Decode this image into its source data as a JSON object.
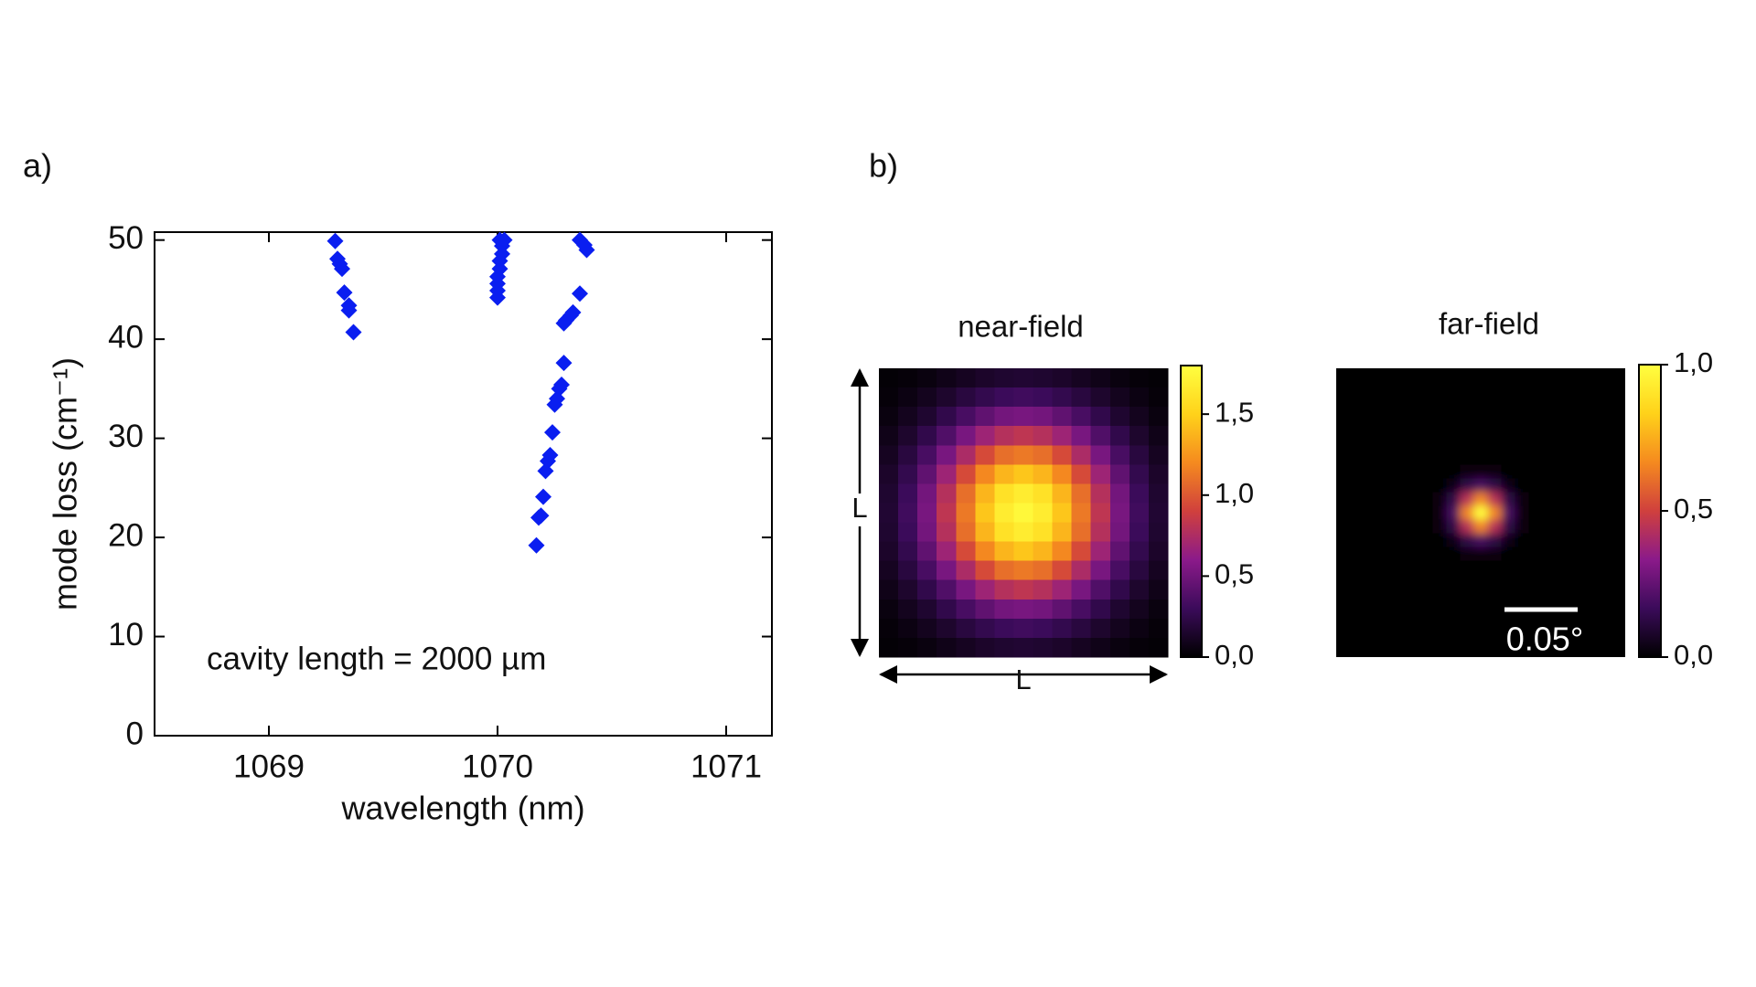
{
  "chart_data": [
    {
      "type": "scatter",
      "panel_label": "a)",
      "xlabel": "wavelength (nm)",
      "ylabel": "mode loss (cm⁻¹)",
      "annotation": "cavity length = 2000 µm",
      "color": "#0a1ef0",
      "xlim": [
        1068.5,
        1071.2
      ],
      "xticks": [
        1069,
        1070,
        1071
      ],
      "ylim": [
        0,
        50.8
      ],
      "yticks": [
        0,
        10,
        20,
        30,
        40,
        50
      ],
      "x": [
        1069.29,
        1069.3,
        1069.31,
        1069.32,
        1069.33,
        1069.35,
        1069.35,
        1069.37,
        1070.0,
        1070.0,
        1070.0,
        1070.0,
        1070.01,
        1070.01,
        1070.02,
        1070.02,
        1070.03,
        1070.01,
        1070.17,
        1070.18,
        1070.19,
        1070.2,
        1070.21,
        1070.22,
        1070.23,
        1070.24,
        1070.25,
        1070.26,
        1070.27,
        1070.28,
        1070.29,
        1070.29,
        1070.3,
        1070.32,
        1070.33,
        1070.36,
        1070.36,
        1070.38,
        1070.39
      ],
      "values": [
        49.9,
        48.1,
        47.6,
        47.1,
        44.7,
        43.4,
        42.9,
        40.7,
        44.2,
        44.9,
        45.6,
        46.3,
        47.1,
        47.9,
        48.6,
        49.4,
        50.0,
        50.0,
        19.2,
        22.0,
        22.2,
        24.1,
        26.7,
        27.7,
        28.3,
        30.6,
        33.4,
        34.0,
        35.0,
        35.4,
        37.6,
        41.6,
        41.9,
        42.4,
        42.7,
        44.6,
        50.0,
        49.5,
        49.0
      ]
    },
    {
      "type": "heatmap",
      "panel_label": "b)",
      "title": "near-field",
      "arrow_labels": [
        "L",
        "L"
      ],
      "smooth": false,
      "colormap": [
        "#000000",
        "#3b0b5a",
        "#8b1a8a",
        "#d0403d",
        "#f58a1f",
        "#ffd21a",
        "#ffff40"
      ],
      "clim": [
        0,
        1.8
      ],
      "cticks": [
        {
          "value": 0,
          "label": "0,0"
        },
        {
          "value": 0.5,
          "label": "0,5"
        },
        {
          "value": 1,
          "label": "1,0"
        },
        {
          "value": 1.5,
          "label": "1,5"
        }
      ],
      "z": [
        [
          0.02,
          0.03,
          0.05,
          0.08,
          0.11,
          0.14,
          0.16,
          0.17,
          0.16,
          0.14,
          0.11,
          0.08,
          0.05,
          0.03,
          0.02
        ],
        [
          0.03,
          0.06,
          0.1,
          0.15,
          0.21,
          0.26,
          0.3,
          0.32,
          0.3,
          0.26,
          0.21,
          0.15,
          0.1,
          0.06,
          0.03
        ],
        [
          0.05,
          0.1,
          0.16,
          0.25,
          0.35,
          0.44,
          0.51,
          0.53,
          0.51,
          0.44,
          0.35,
          0.25,
          0.16,
          0.1,
          0.05
        ],
        [
          0.08,
          0.15,
          0.25,
          0.38,
          0.53,
          0.68,
          0.78,
          0.82,
          0.78,
          0.68,
          0.53,
          0.38,
          0.25,
          0.15,
          0.08
        ],
        [
          0.11,
          0.21,
          0.35,
          0.53,
          0.74,
          0.94,
          1.09,
          1.13,
          1.09,
          0.94,
          0.74,
          0.53,
          0.35,
          0.21,
          0.11
        ],
        [
          0.14,
          0.26,
          0.44,
          0.68,
          0.94,
          1.19,
          1.38,
          1.45,
          1.38,
          1.19,
          0.94,
          0.68,
          0.44,
          0.26,
          0.14
        ],
        [
          0.16,
          0.3,
          0.51,
          0.78,
          1.09,
          1.38,
          1.6,
          1.67,
          1.6,
          1.38,
          1.09,
          0.78,
          0.51,
          0.3,
          0.16
        ],
        [
          0.17,
          0.32,
          0.53,
          0.82,
          1.13,
          1.45,
          1.67,
          1.75,
          1.67,
          1.45,
          1.13,
          0.82,
          0.53,
          0.32,
          0.17
        ],
        [
          0.16,
          0.3,
          0.51,
          0.78,
          1.09,
          1.38,
          1.6,
          1.67,
          1.6,
          1.38,
          1.09,
          0.78,
          0.51,
          0.3,
          0.16
        ],
        [
          0.14,
          0.26,
          0.44,
          0.68,
          0.94,
          1.19,
          1.38,
          1.45,
          1.38,
          1.19,
          0.94,
          0.68,
          0.44,
          0.26,
          0.14
        ],
        [
          0.11,
          0.21,
          0.35,
          0.53,
          0.74,
          0.94,
          1.09,
          1.13,
          1.09,
          0.94,
          0.74,
          0.53,
          0.35,
          0.21,
          0.11
        ],
        [
          0.08,
          0.15,
          0.25,
          0.38,
          0.53,
          0.68,
          0.78,
          0.82,
          0.78,
          0.68,
          0.53,
          0.38,
          0.25,
          0.15,
          0.08
        ],
        [
          0.05,
          0.1,
          0.16,
          0.25,
          0.35,
          0.44,
          0.51,
          0.53,
          0.51,
          0.44,
          0.35,
          0.25,
          0.16,
          0.1,
          0.05
        ],
        [
          0.03,
          0.06,
          0.1,
          0.15,
          0.21,
          0.26,
          0.3,
          0.32,
          0.3,
          0.26,
          0.21,
          0.15,
          0.1,
          0.06,
          0.03
        ],
        [
          0.02,
          0.03,
          0.05,
          0.08,
          0.11,
          0.14,
          0.16,
          0.17,
          0.16,
          0.14,
          0.11,
          0.08,
          0.05,
          0.03,
          0.02
        ]
      ]
    },
    {
      "type": "heatmap",
      "title": "far-field",
      "scalebar_label": "0.05°",
      "smooth": true,
      "colormap": [
        "#000000",
        "#3b0b5a",
        "#8b1a8a",
        "#d0403d",
        "#f58a1f",
        "#ffd21a",
        "#ffff40"
      ],
      "clim": [
        0,
        1
      ],
      "cticks": [
        {
          "value": 0,
          "label": "0,0"
        },
        {
          "value": 0.5,
          "label": "0,5"
        },
        {
          "value": 1,
          "label": "1,0"
        }
      ],
      "z": [
        [
          0,
          0,
          0,
          0,
          0,
          0,
          0,
          0,
          0,
          0,
          0,
          0,
          0,
          0,
          0,
          0,
          0,
          0,
          0,
          0,
          0
        ],
        [
          0,
          0,
          0,
          0,
          0,
          0,
          0,
          0,
          0,
          0,
          0,
          0,
          0,
          0,
          0,
          0,
          0,
          0,
          0,
          0,
          0
        ],
        [
          0,
          0,
          0,
          0,
          0,
          0,
          0,
          0,
          0,
          0,
          0,
          0,
          0,
          0,
          0,
          0,
          0,
          0,
          0,
          0,
          0
        ],
        [
          0,
          0,
          0,
          0,
          0,
          0,
          0,
          0,
          0,
          0,
          0,
          0,
          0,
          0,
          0,
          0,
          0,
          0,
          0,
          0,
          0
        ],
        [
          0,
          0,
          0,
          0,
          0,
          0,
          0,
          0,
          0,
          0,
          0,
          0,
          0,
          0,
          0,
          0,
          0,
          0,
          0,
          0,
          0
        ],
        [
          0,
          0,
          0,
          0,
          0,
          0,
          0,
          0,
          0,
          0,
          0,
          0,
          0,
          0,
          0,
          0,
          0,
          0,
          0,
          0,
          0
        ],
        [
          0,
          0,
          0,
          0,
          0,
          0,
          0,
          0,
          0,
          0,
          0,
          0,
          0,
          0,
          0,
          0,
          0,
          0,
          0,
          0,
          0
        ],
        [
          0,
          0,
          0,
          0,
          0,
          0,
          0,
          0,
          0,
          0.02,
          0.02,
          0.02,
          0,
          0,
          0,
          0,
          0,
          0,
          0,
          0,
          0
        ],
        [
          0,
          0,
          0,
          0,
          0,
          0,
          0,
          0,
          0.04,
          0.13,
          0.19,
          0.13,
          0.04,
          0,
          0,
          0,
          0,
          0,
          0,
          0,
          0
        ],
        [
          0,
          0,
          0,
          0,
          0,
          0,
          0,
          0.02,
          0.13,
          0.44,
          0.66,
          0.44,
          0.13,
          0.02,
          0,
          0,
          0,
          0,
          0,
          0,
          0
        ],
        [
          0,
          0,
          0,
          0,
          0,
          0,
          0,
          0.02,
          0.19,
          0.66,
          1.0,
          0.66,
          0.19,
          0.02,
          0,
          0,
          0,
          0,
          0,
          0,
          0
        ],
        [
          0,
          0,
          0,
          0,
          0,
          0,
          0,
          0.02,
          0.13,
          0.44,
          0.66,
          0.44,
          0.13,
          0.02,
          0,
          0,
          0,
          0,
          0,
          0,
          0
        ],
        [
          0,
          0,
          0,
          0,
          0,
          0,
          0,
          0,
          0.04,
          0.13,
          0.19,
          0.13,
          0.04,
          0,
          0,
          0,
          0,
          0,
          0,
          0,
          0
        ],
        [
          0,
          0,
          0,
          0,
          0,
          0,
          0,
          0,
          0,
          0.02,
          0.02,
          0.02,
          0,
          0,
          0,
          0,
          0,
          0,
          0,
          0,
          0
        ],
        [
          0,
          0,
          0,
          0,
          0,
          0,
          0,
          0,
          0,
          0,
          0,
          0,
          0,
          0,
          0,
          0,
          0,
          0,
          0,
          0,
          0
        ],
        [
          0,
          0,
          0,
          0,
          0,
          0,
          0,
          0,
          0,
          0,
          0,
          0,
          0,
          0,
          0,
          0,
          0,
          0,
          0,
          0,
          0
        ],
        [
          0,
          0,
          0,
          0,
          0,
          0,
          0,
          0,
          0,
          0,
          0,
          0,
          0,
          0,
          0,
          0,
          0,
          0,
          0,
          0,
          0
        ],
        [
          0,
          0,
          0,
          0,
          0,
          0,
          0,
          0,
          0,
          0,
          0,
          0,
          0,
          0,
          0,
          0,
          0,
          0,
          0,
          0,
          0
        ],
        [
          0,
          0,
          0,
          0,
          0,
          0,
          0,
          0,
          0,
          0,
          0,
          0,
          0,
          0,
          0,
          0,
          0,
          0,
          0,
          0,
          0
        ],
        [
          0,
          0,
          0,
          0,
          0,
          0,
          0,
          0,
          0,
          0,
          0,
          0,
          0,
          0,
          0,
          0,
          0,
          0,
          0,
          0,
          0
        ],
        [
          0,
          0,
          0,
          0,
          0,
          0,
          0,
          0,
          0,
          0,
          0,
          0,
          0,
          0,
          0,
          0,
          0,
          0,
          0,
          0,
          0
        ]
      ]
    }
  ]
}
